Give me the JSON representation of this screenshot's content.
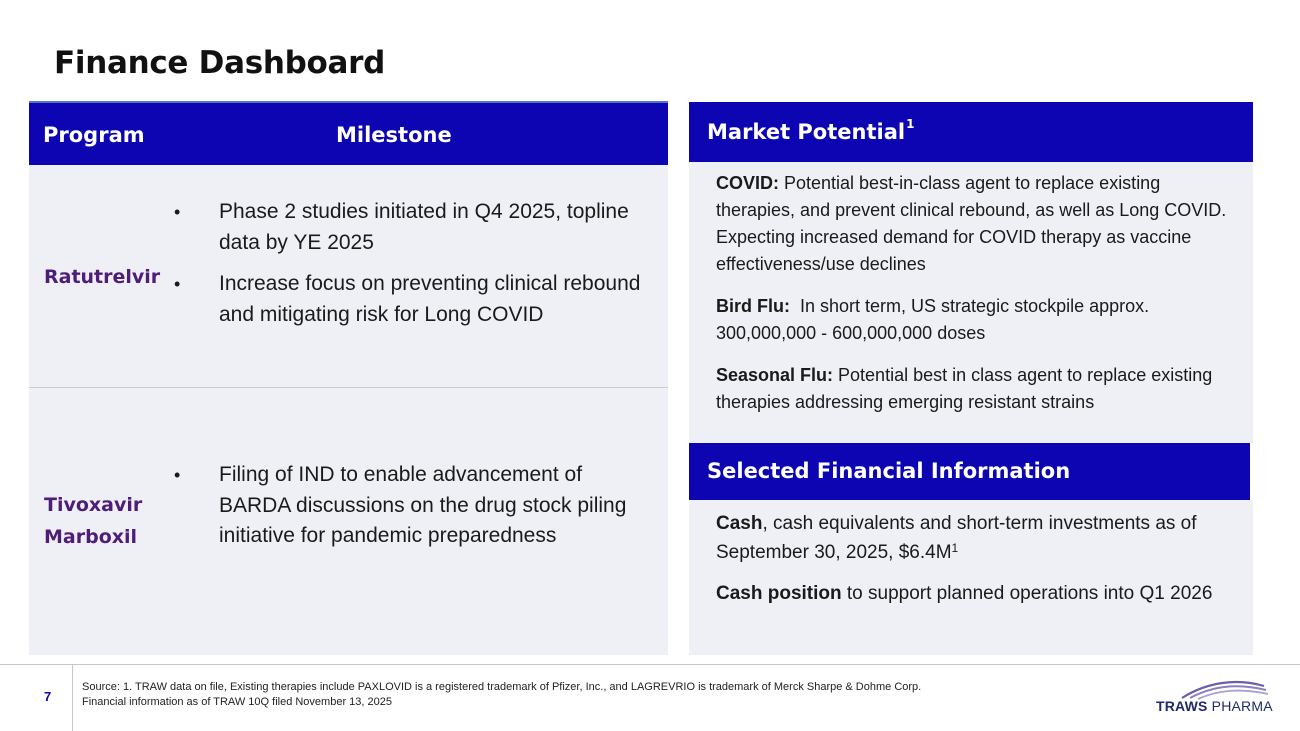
{
  "page": {
    "title": "Finance Dashboard",
    "page_number": "7"
  },
  "program_table": {
    "header": {
      "program": "Program",
      "milestone": "Milestone"
    },
    "rows": [
      {
        "program_lines": [
          "Ratutrelvir"
        ],
        "milestones": [
          "Phase 2 studies initiated in Q4 2025, topline data by YE 2025",
          "Increase focus on preventing clinical rebound and mitigating risk for Long COVID"
        ]
      },
      {
        "program_lines": [
          "Tivoxavir",
          "Marboxil"
        ],
        "milestones": [
          "Filing of IND to enable advancement of BARDA discussions on the drug stock piling initiative for pandemic preparedness"
        ]
      }
    ],
    "bullet_glyph": "•"
  },
  "market_potential": {
    "header": "Market Potential",
    "header_sup": "1",
    "items": [
      {
        "label": "COVID:",
        "text": " Potential best-in-class agent to replace existing therapies, and prevent clinical rebound, as well as Long COVID. Expecting increased demand for COVID therapy as vaccine effectiveness/use declines"
      },
      {
        "label": "Bird Flu:",
        "text": "  In short term, US strategic stockpile approx. 300,000,000 - 600,000,000 doses"
      },
      {
        "label": "Seasonal Flu:",
        "text": " Potential best in class agent to replace existing therapies addressing emerging resistant strains"
      }
    ]
  },
  "financial_info": {
    "header": "Selected Financial Information",
    "items": [
      {
        "label": "Cash",
        "text": ", cash equivalents and short-term investments as of September 30, 2025, $6.4M",
        "sup": "1"
      },
      {
        "label": "Cash position",
        "text": " to support planned operations into Q1 2026",
        "sup": ""
      }
    ]
  },
  "footer": {
    "source_line1": "Source: 1. TRAW data on file, Existing therapies include PAXLOVID is a registered trademark of Pfizer, Inc., and LAGREVRIO is trademark of Merck Sharpe & Dohme Corp.",
    "source_line2": "Financial information as of TRAW 10Q filed November 13, 2025"
  },
  "logo": {
    "name": "traws-pharma-logo",
    "word1": "TRAWS",
    "word2": "PHARMA"
  },
  "colors": {
    "header_blue": "#0c05b1",
    "program_purple": "#4e1d78",
    "panel_bg": "#eff0f6",
    "logo_navy": "#1f2a6b",
    "logo_accent": "#6b5fa8"
  }
}
